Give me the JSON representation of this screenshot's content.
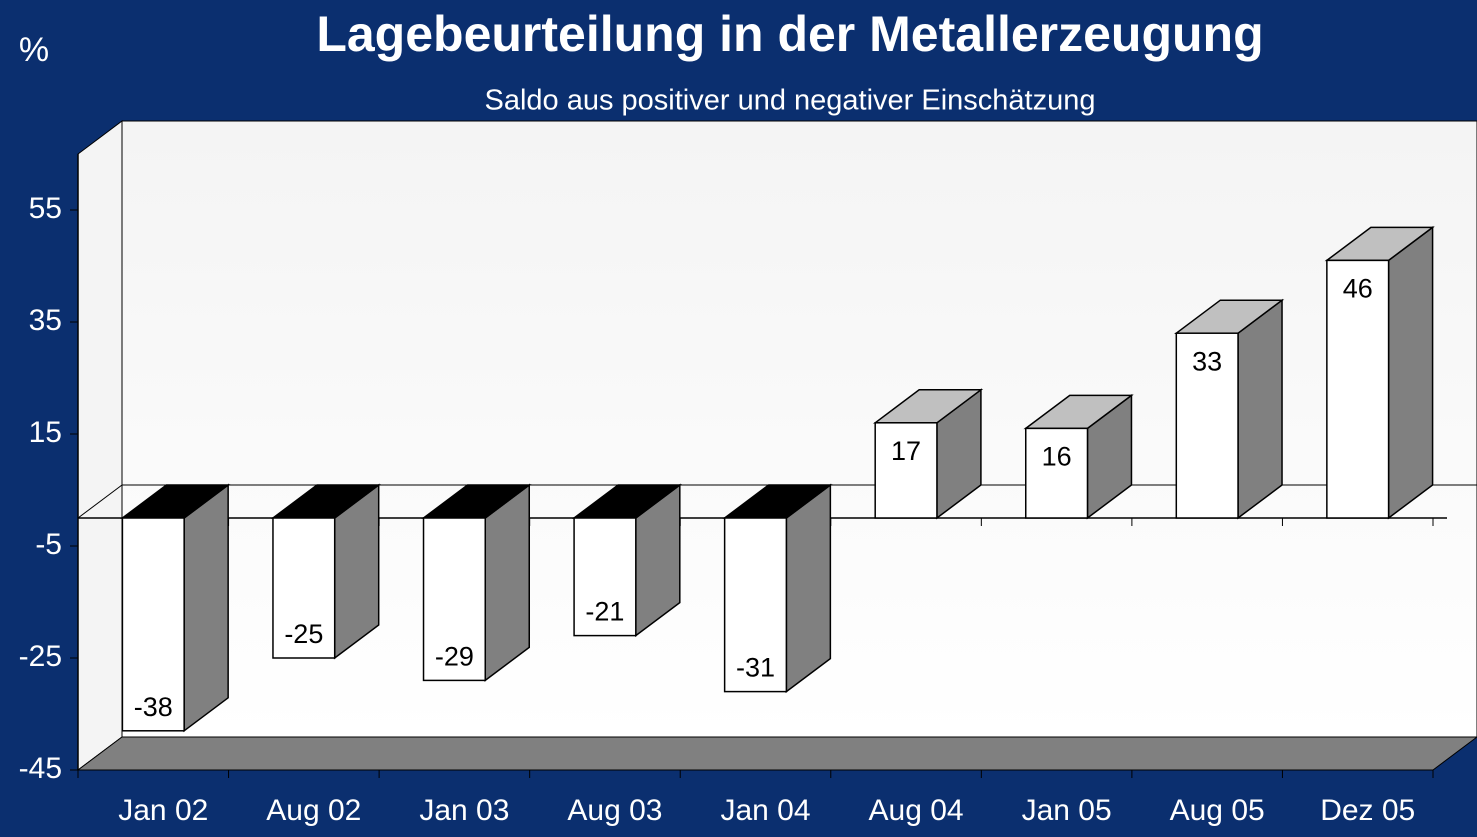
{
  "chart_data": {
    "type": "bar3d",
    "title": "Lagebeurteilung in der Metallerzeugung",
    "subtitle": "Saldo aus positiver und negativer Einschätzung",
    "y_label": "%",
    "categories": [
      "Jan 02",
      "Aug 02",
      "Jan 03",
      "Aug 03",
      "Jan 04",
      "Aug 04",
      "Jan 05",
      "Aug 05",
      "Dez 05"
    ],
    "values": [
      -38,
      -25,
      -29,
      -21,
      -31,
      17,
      16,
      33,
      46
    ],
    "color": "#ffffff",
    "ylim": [
      -45,
      65
    ],
    "yticks": [
      -45,
      -25,
      -5,
      15,
      35,
      55
    ],
    "grid": false
  }
}
